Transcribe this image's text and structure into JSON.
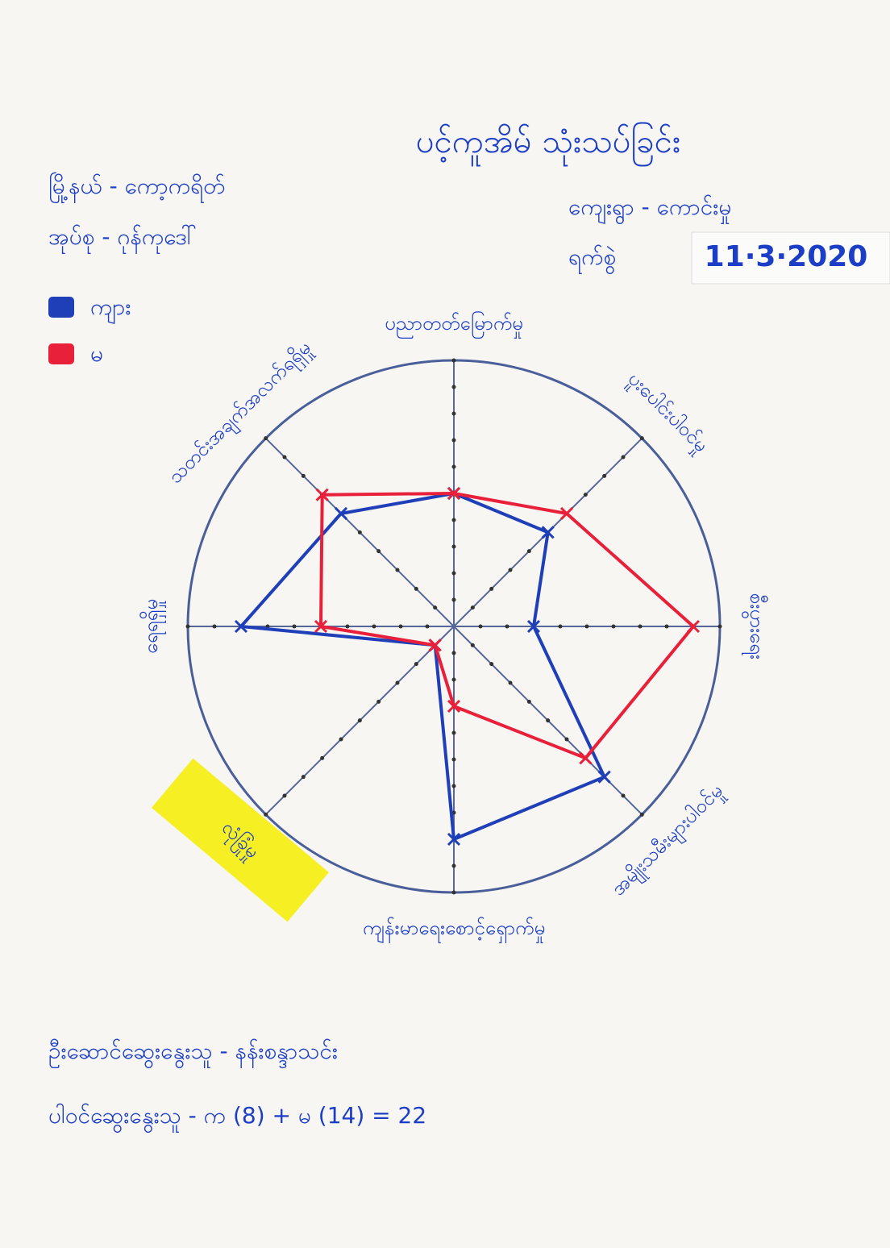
{
  "chart_data": {
    "type": "radar",
    "title": "ပင့်ကူအိမ် သုံးသပ်ခြင်း",
    "categories": [
      "ပညာတတ်မြောက်မှု",
      "ပူးပေါင်းပါဝင်မှု",
      "စီးပွားရေး",
      "အမျိုးသမီးများပါဝင်မှု",
      "ကျန်းမာရေးစောင့်ရှောက်မှု",
      "လုံခြုံမှု",
      "ရေရရှိမှု",
      "သတင်းအချက်အလက်ရရှိမှု"
    ],
    "series": [
      {
        "name": "ကျား",
        "color": "#1f3fb8",
        "values": [
          5,
          5,
          3,
          8,
          8,
          1,
          8,
          6
        ]
      },
      {
        "name": "မ",
        "color": "#e8203a",
        "values": [
          5,
          6,
          9,
          7,
          3,
          1,
          5,
          7
        ]
      }
    ],
    "rlim": [
      0,
      10
    ],
    "rticks": [
      1,
      2,
      3,
      4,
      5,
      6,
      7,
      8,
      9,
      10
    ],
    "legend": "top-left"
  },
  "header": {
    "township": "မြို့နယ် - ကော့ကရိတ်",
    "village_tract": "အုပ်စု - ဂုန်ကုဒေါ်",
    "village": "ကျေးရွာ - ကောင်းမှု",
    "date_label": "ရက်စွဲ",
    "date": "11·3·2020"
  },
  "footer": {
    "facilitator": "ဦးဆောင်ဆွေးနွေးသူ - နန်းစန္ဒာသင်း",
    "participants": "ပါဝင်ဆွေးနွေးသူ - က (8) + မ (14) = 22"
  }
}
